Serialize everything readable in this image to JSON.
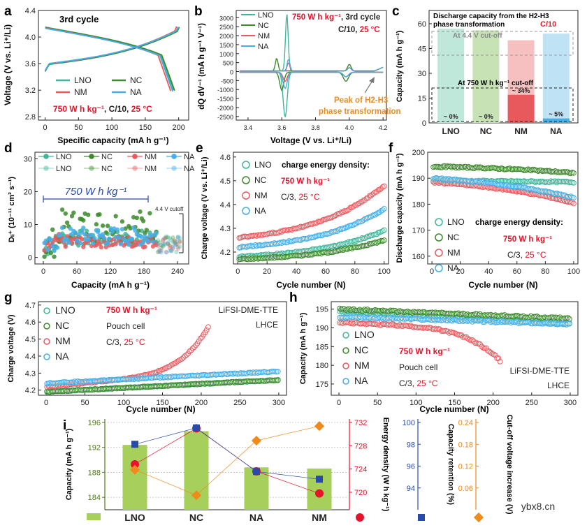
{
  "colors": {
    "LNO": "#3fb59a",
    "NC": "#3c8a2a",
    "NM": "#e8595e",
    "NA": "#44aee6",
    "red": "#e8132b",
    "orange": "#f08a1c",
    "blue": "#2a4aa8",
    "green_axis": "#4f7a18",
    "bar_green": "#a6cf5b"
  },
  "watermark": "ybx8.cn",
  "panels": {
    "a": {
      "letter": "a",
      "title": "3rd cycle",
      "ylabel": "Voltage (V vs. Li⁺/Li)",
      "xlabel": "Specific capacity (mA h g⁻¹)",
      "xticks": [
        "0",
        "50",
        "100",
        "150",
        "200"
      ],
      "yticks": [
        "2.8",
        "3.2",
        "3.6",
        "4.0",
        "4.4"
      ],
      "legend": [
        "LNO",
        "NC",
        "NM",
        "NA"
      ],
      "note_energy": "750 W h kg⁻¹",
      "note_rate": ", C/10, ",
      "note_temp": "25 °C"
    },
    "b": {
      "letter": "b",
      "ylabel": "dQ dV⁻¹ (mA h g⁻¹ V⁻¹)",
      "xlabel": "Voltage (V vs. Li⁺/Li)",
      "xticks": [
        "3.4",
        "3.6",
        "3.8",
        "4.0",
        "4.2"
      ],
      "yticks": [
        "-2500",
        "-2000",
        "-1500",
        "-1000",
        "-500",
        "0",
        "500",
        "1000",
        "1500",
        "2000",
        "2500",
        "3000"
      ],
      "legend": [
        "LNO",
        "NC",
        "NM",
        "NA"
      ],
      "note_energy": "750 W h kg⁻¹",
      "note_cycle": ", 3rd cycle",
      "note_rate": "C/10, ",
      "note_temp": "25 °C",
      "annot1": "Peak of H2-H3",
      "annot2": "phase transformation"
    },
    "c": {
      "letter": "c",
      "ylabel": "Capacity (mA h g⁻¹)",
      "title1": "Discharge capacity from the H2-H3",
      "title2": "phase transformation",
      "title_rate": "C/10",
      "cutoff_high": "At 4.4 V cut-off",
      "cutoff_low": "At 750 W h kg⁻¹ cut-off",
      "yticks": [
        "0",
        "15",
        "30",
        "45",
        "60"
      ],
      "categories": [
        "LNO",
        "NC",
        "NM",
        "NA"
      ],
      "pct": [
        "~ 0%",
        "~ 0%",
        "~ 34%",
        "~ 5%"
      ]
    },
    "d": {
      "letter": "d",
      "ylabel": "Dₗᵢ⁺ (10⁻¹¹ cm² s⁻¹)",
      "xlabel": "Capacity (mA h g⁻¹)",
      "xticks": [
        "0",
        "60",
        "120",
        "180",
        "240"
      ],
      "yticks": [
        "0",
        "10",
        "20",
        "30"
      ],
      "legend": [
        "LNO",
        "NC",
        "NM",
        "NA",
        "LNO",
        "NC",
        "NM",
        "NA"
      ],
      "note_energy": "750 W h kg⁻¹",
      "cutoff": "4.4 V cutoff"
    },
    "e": {
      "letter": "e",
      "ylabel": "Charge voltage (V vs. Li⁺/Li)",
      "xlabel": "Cycle number (N)",
      "xticks": [
        "0",
        "20",
        "40",
        "60",
        "80",
        "100"
      ],
      "yticks": [
        "4.2",
        "4.3",
        "4.4",
        "4.5",
        "4.6"
      ],
      "legend": [
        "LNO",
        "NC",
        "NM",
        "NA"
      ],
      "note_title": "charge energy density:",
      "note_energy": "750 W h kg⁻¹",
      "note_rate": "C/3, ",
      "note_temp": "25 °C"
    },
    "f": {
      "letter": "f",
      "ylabel": "Discharge capacity (mA h g⁻¹)",
      "xlabel": "Cycle number (N)",
      "xticks": [
        "0",
        "20",
        "40",
        "60",
        "80",
        "100"
      ],
      "yticks": [
        "160",
        "170",
        "180",
        "190",
        "200"
      ],
      "legend": [
        "LNO",
        "NC",
        "NM",
        "NA"
      ],
      "note_title": "charge energy density:",
      "note_energy": "750 W h kg⁻¹",
      "note_rate": "C/3, ",
      "note_temp": "25 °C"
    },
    "g": {
      "letter": "g",
      "ylabel": "Charge voltage (V)",
      "xlabel": "Cycle number (N)",
      "xticks": [
        "0",
        "50",
        "100",
        "150",
        "200",
        "250",
        "300"
      ],
      "yticks": [
        "4.2",
        "4.3",
        "4.4",
        "4.5",
        "4.6",
        "4.7"
      ],
      "legend": [
        "LNO",
        "NC",
        "NM",
        "NA"
      ],
      "note_energy": "750 W h kg⁻¹",
      "note_cell": "Pouch cell",
      "note_rate": "C/3, ",
      "note_temp": "25 °C",
      "electrolyte1": "LiFSI-DME-TTE",
      "electrolyte2": "LHCE"
    },
    "h": {
      "letter": "h",
      "ylabel": "Capacity (mA h g⁻¹)",
      "xlabel": "Cycle number (N)",
      "xticks": [
        "0",
        "50",
        "100",
        "150",
        "200",
        "250",
        "300"
      ],
      "yticks": [
        "175",
        "180",
        "185",
        "190",
        "195"
      ],
      "legend": [
        "LNO",
        "NC",
        "NM",
        "NA"
      ],
      "note_energy": "750 W h kg⁻¹",
      "note_cell": "Pouch cell",
      "note_rate": "C/3, ",
      "note_temp": "25 °C",
      "electrolyte1": "LiFSI-DME-TTE",
      "electrolyte2": "LHCE"
    },
    "i": {
      "letter": "i",
      "ylabel_cap": "Capacity (mA h g⁻¹)",
      "ylabel_energy": "Energy density (W h kg⁻¹)",
      "ylabel_ret": "Capacity retention (%)",
      "ylabel_cut": "Cut-off voltage increase (V)",
      "cap_ticks": [
        "184",
        "188",
        "192",
        "196"
      ],
      "energy_ticks": [
        "720",
        "724",
        "728",
        "732"
      ],
      "ret_ticks": [
        "94",
        "96",
        "98",
        "100"
      ],
      "cut_ticks": [
        "0.06",
        "0.12",
        "0.18",
        "0.24"
      ],
      "categories": [
        "LNO",
        "NC",
        "NA",
        "NM"
      ]
    }
  },
  "chart_data": [
    {
      "panel": "a",
      "type": "line",
      "title": "3rd cycle",
      "xlabel": "Specific capacity (mA h g-1)",
      "ylabel": "Voltage (V vs. Li+/Li)",
      "xlim": [
        -10,
        215
      ],
      "ylim": [
        2.75,
        4.4
      ],
      "series": [
        {
          "name": "LNO",
          "charge_end_capacity": 196,
          "discharge_end_capacity": 192,
          "upper_voltage": 4.17,
          "lower_voltage": 2.85
        },
        {
          "name": "NC",
          "charge_end_capacity": 198,
          "discharge_end_capacity": 194,
          "upper_voltage": 4.17,
          "lower_voltage": 2.85
        },
        {
          "name": "NM",
          "charge_end_capacity": 194,
          "discharge_end_capacity": 188,
          "upper_voltage": 4.18,
          "lower_voltage": 2.85
        },
        {
          "name": "NA",
          "charge_end_capacity": 197,
          "discharge_end_capacity": 191,
          "upper_voltage": 4.17,
          "lower_voltage": 2.85
        }
      ]
    },
    {
      "panel": "b",
      "type": "line",
      "xlabel": "Voltage (V vs. Li+/Li)",
      "ylabel": "dQ dV-1 (mA h g-1 V-1)",
      "xlim": [
        3.33,
        4.22
      ],
      "ylim": [
        -2700,
        3400
      ],
      "series": [
        {
          "name": "LNO",
          "charge_peak": [
            3.63,
            3200
          ],
          "discharge_peak": [
            3.62,
            -2500
          ]
        },
        {
          "name": "NC",
          "charge_peak": [
            3.57,
            700
          ],
          "discharge_peak": [
            3.6,
            -1000
          ]
        },
        {
          "name": "NM",
          "charge_peak": [
            3.64,
            450
          ],
          "discharge_peak": [
            3.62,
            -500
          ]
        },
        {
          "name": "NA",
          "charge_peak": [
            3.64,
            650
          ],
          "discharge_peak": [
            3.62,
            -900
          ]
        }
      ]
    },
    {
      "panel": "c",
      "type": "bar",
      "title": "Discharge capacity from the H2-H3 phase transformation, C/10",
      "categories": [
        "LNO",
        "NC",
        "NM",
        "NA"
      ],
      "series": [
        {
          "name": "At 4.4 V cut-off",
          "values": [
            57,
            56,
            50,
            54
          ]
        },
        {
          "name": "At 750 W h kg-1 cut-off",
          "values": [
            0,
            0,
            17,
            2.7
          ]
        }
      ],
      "labels": [
        "~ 0%",
        "~ 0%",
        "~ 34%",
        "~ 5%"
      ],
      "ylim": [
        0,
        68
      ]
    },
    {
      "panel": "d",
      "type": "scatter",
      "xlabel": "Capacity (mA h g-1)",
      "ylabel": "DLi+ (10-11 cm2 s-1)",
      "xlim": [
        -15,
        260
      ],
      "ylim": [
        -2,
        32
      ],
      "series": [
        {
          "name": "LNO",
          "typical_range": [
            2,
            9
          ]
        },
        {
          "name": "NC",
          "typical_range": [
            2,
            16
          ]
        },
        {
          "name": "NM",
          "typical_range": [
            2,
            7
          ]
        },
        {
          "name": "NA",
          "typical_range": [
            2,
            10
          ]
        }
      ],
      "annotation": "750 W h kg-1 range 0-200 mA h g-1"
    },
    {
      "panel": "e",
      "type": "scatter",
      "xlabel": "Cycle number (N)",
      "ylabel": "Charge voltage (V vs. Li+/Li)",
      "xlim": [
        -3,
        103
      ],
      "ylim": [
        4.15,
        4.62
      ],
      "series": [
        {
          "name": "LNO",
          "start": 4.18,
          "end": 4.29
        },
        {
          "name": "NC",
          "start": 4.17,
          "end": 4.25
        },
        {
          "name": "NM",
          "start": 4.26,
          "end": 4.48
        },
        {
          "name": "NA",
          "start": 4.22,
          "end": 4.38
        }
      ]
    },
    {
      "panel": "f",
      "type": "scatter",
      "xlabel": "Cycle number (N)",
      "ylabel": "Discharge capacity (mA h g-1)",
      "xlim": [
        -3,
        103
      ],
      "ylim": [
        157,
        200
      ],
      "series": [
        {
          "name": "LNO",
          "start": 189,
          "end": 188.5
        },
        {
          "name": "NC",
          "start": 194.5,
          "end": 192
        },
        {
          "name": "NM",
          "start": 188.5,
          "end": 180.5
        },
        {
          "name": "NA",
          "start": 190,
          "end": 182.5
        }
      ]
    },
    {
      "panel": "g",
      "type": "scatter",
      "xlabel": "Cycle number (N)",
      "ylabel": "Charge voltage (V)",
      "xlim": [
        -10,
        310
      ],
      "ylim": [
        4.17,
        4.72
      ],
      "series": [
        {
          "name": "LNO",
          "start": 4.19,
          "end": 4.26,
          "last_cycle": 300
        },
        {
          "name": "NC",
          "start": 4.19,
          "end": 4.26,
          "last_cycle": 300
        },
        {
          "name": "NM",
          "start": 4.22,
          "end": 4.58,
          "last_cycle": 210
        },
        {
          "name": "NA",
          "start": 4.24,
          "end": 4.31,
          "last_cycle": 300
        }
      ]
    },
    {
      "panel": "h",
      "type": "scatter",
      "xlabel": "Cycle number (N)",
      "ylabel": "Capacity (mA h g-1)",
      "xlim": [
        -10,
        310
      ],
      "ylim": [
        172,
        197
      ],
      "series": [
        {
          "name": "LNO",
          "start": 194.5,
          "end": 191,
          "last_cycle": 300
        },
        {
          "name": "NC",
          "start": 195,
          "end": 192.5,
          "last_cycle": 300
        },
        {
          "name": "NM",
          "start": 191.5,
          "end": 181,
          "last_cycle": 210
        },
        {
          "name": "NA",
          "start": 193,
          "end": 191,
          "last_cycle": 300
        }
      ]
    },
    {
      "panel": "i",
      "type": "bar",
      "categories": [
        "LNO",
        "NC",
        "NA",
        "NM"
      ],
      "series": [
        {
          "name": "Capacity (mA h g-1)",
          "values": [
            192.4,
            194.6,
            188.8,
            188.6
          ],
          "ylim": [
            182,
            196
          ]
        },
        {
          "name": "Energy density (W h kg-1)",
          "values": [
            724.8,
            731,
            723.6,
            719.8
          ],
          "ylim": [
            717,
            732
          ]
        },
        {
          "name": "Capacity retention (%)",
          "values": [
            98,
            99.5,
            95.5,
            94.8
          ],
          "ylim": [
            92,
            100
          ]
        },
        {
          "name": "Cut-off voltage increase (V)",
          "values": [
            0.11,
            0.04,
            0.19,
            0.23
          ],
          "ylim": [
            0,
            0.24
          ]
        }
      ]
    }
  ]
}
